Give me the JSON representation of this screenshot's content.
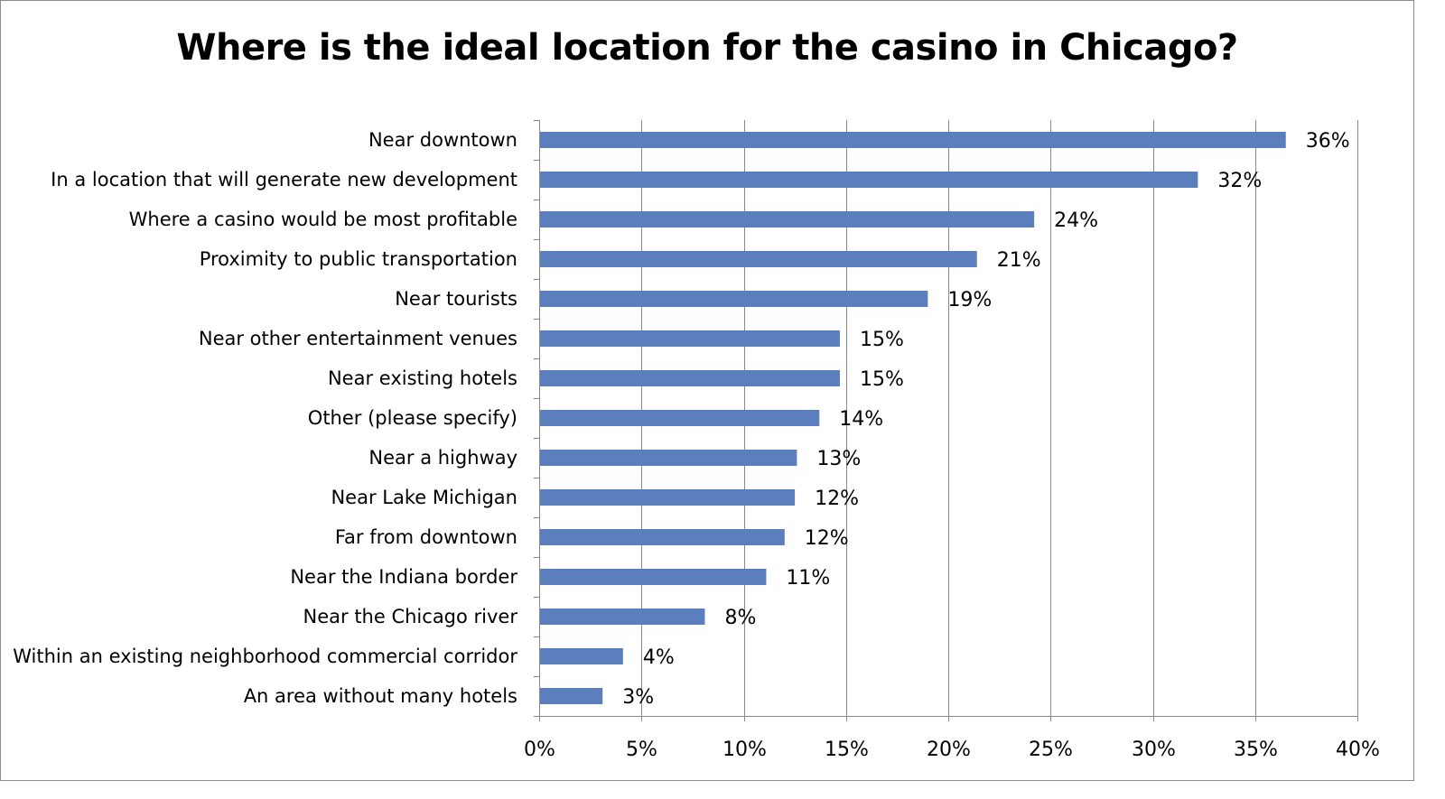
{
  "chart_data": {
    "type": "bar",
    "orientation": "horizontal",
    "title": "Where is the ideal location for the casino in Chicago?",
    "xlabel": "",
    "ylabel": "",
    "categories": [
      "Near downtown",
      "In a location that will generate new development",
      "Where a casino would be most profitable",
      "Proximity to public transportation",
      "Near tourists",
      "Near other entertainment venues",
      "Near existing hotels",
      "Other (please specify)",
      "Near a highway",
      "Near Lake Michigan",
      "Far from downtown",
      "Near the Indiana border",
      "Near the Chicago river",
      "Within an existing neighborhood commercial corridor",
      "An area without many hotels"
    ],
    "values": [
      36.5,
      32.2,
      24.2,
      21.4,
      19.0,
      14.7,
      14.7,
      13.7,
      12.6,
      12.5,
      12.0,
      11.1,
      8.1,
      4.1,
      3.1
    ],
    "value_labels": [
      "36%",
      "32%",
      "24%",
      "21%",
      "19%",
      "15%",
      "15%",
      "14%",
      "13%",
      "12%",
      "12%",
      "11%",
      "8%",
      "4%",
      "3%"
    ],
    "xlim": [
      0,
      40
    ],
    "xticks": [
      0,
      5,
      10,
      15,
      20,
      25,
      30,
      35,
      40
    ],
    "xtick_labels": [
      "0%",
      "5%",
      "10%",
      "15%",
      "20%",
      "25%",
      "30%",
      "35%",
      "40%"
    ],
    "grid": "vertical",
    "legend": "none",
    "colors": {
      "bar": "#5b7fbc",
      "grid": "#888888",
      "axis": "#888888",
      "text": "#000000"
    }
  }
}
